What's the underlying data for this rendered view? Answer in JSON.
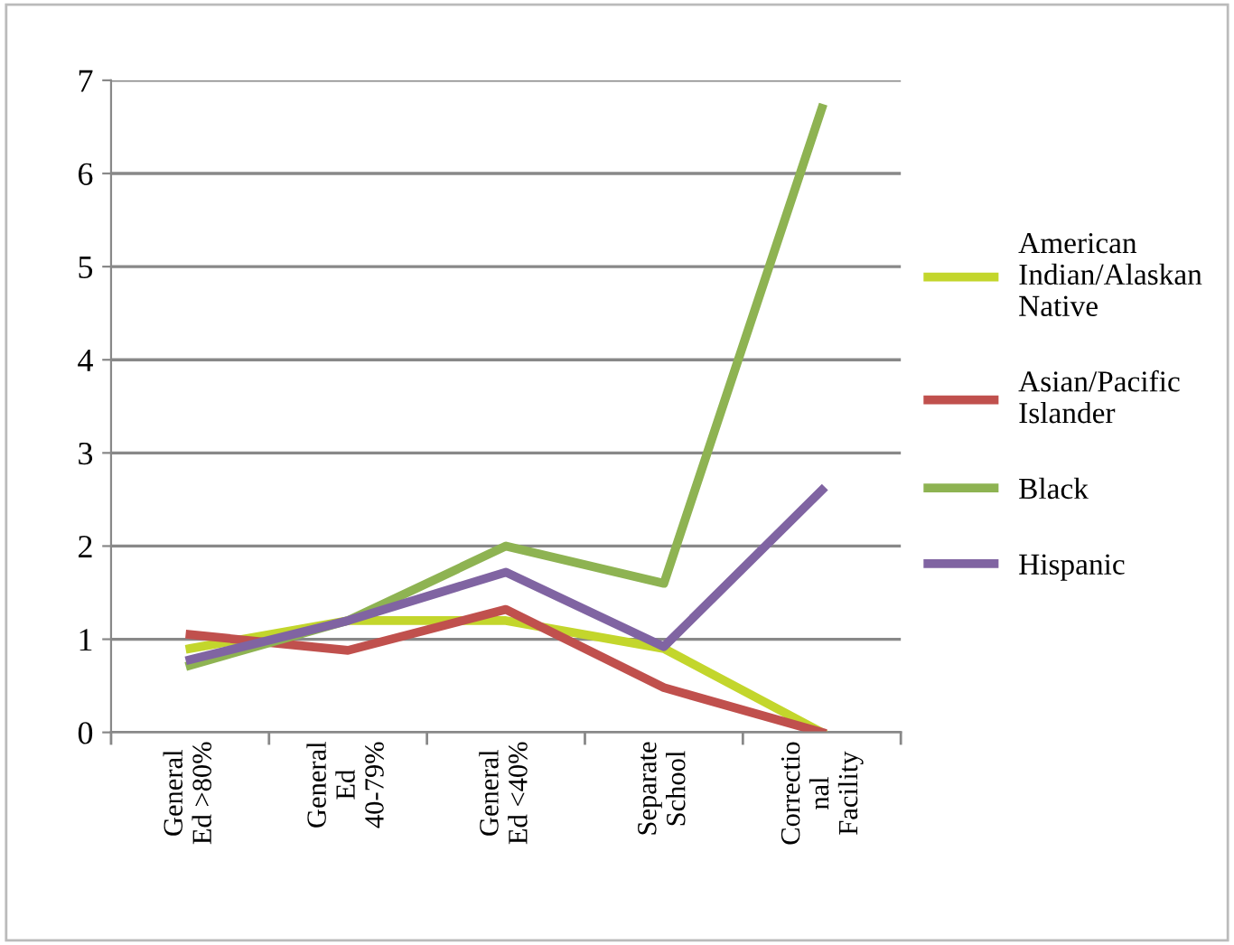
{
  "chart_data": {
    "type": "line",
    "categories": [
      "General\nEd >80%",
      "General\nEd\n40-79%",
      "General\nEd <40%",
      "Separate\nSchool",
      "Correctio\nnal\nFacility"
    ],
    "series": [
      {
        "name": "American\nIndian/Alaskan\nNative",
        "color": "#c3d62c",
        "values": [
          0.9,
          1.2,
          1.2,
          0.9,
          0
        ]
      },
      {
        "name": "Asian/Pacific\nIslander",
        "color": "#c0504d",
        "values": [
          1.05,
          0.88,
          1.32,
          0.48,
          0
        ]
      },
      {
        "name": "Black",
        "color": "#8eb352",
        "values": [
          0.72,
          1.2,
          2.0,
          1.6,
          6.7
        ]
      },
      {
        "name": "Hispanic",
        "color": "#8064a2",
        "values": [
          0.78,
          1.2,
          1.72,
          0.92,
          2.6
        ]
      }
    ],
    "ylim": [
      0,
      7
    ],
    "yticks": [
      0,
      1,
      2,
      3,
      4,
      5,
      6,
      7
    ],
    "grid": "y",
    "legend": "right",
    "marker": "none",
    "line_style": "solid"
  }
}
